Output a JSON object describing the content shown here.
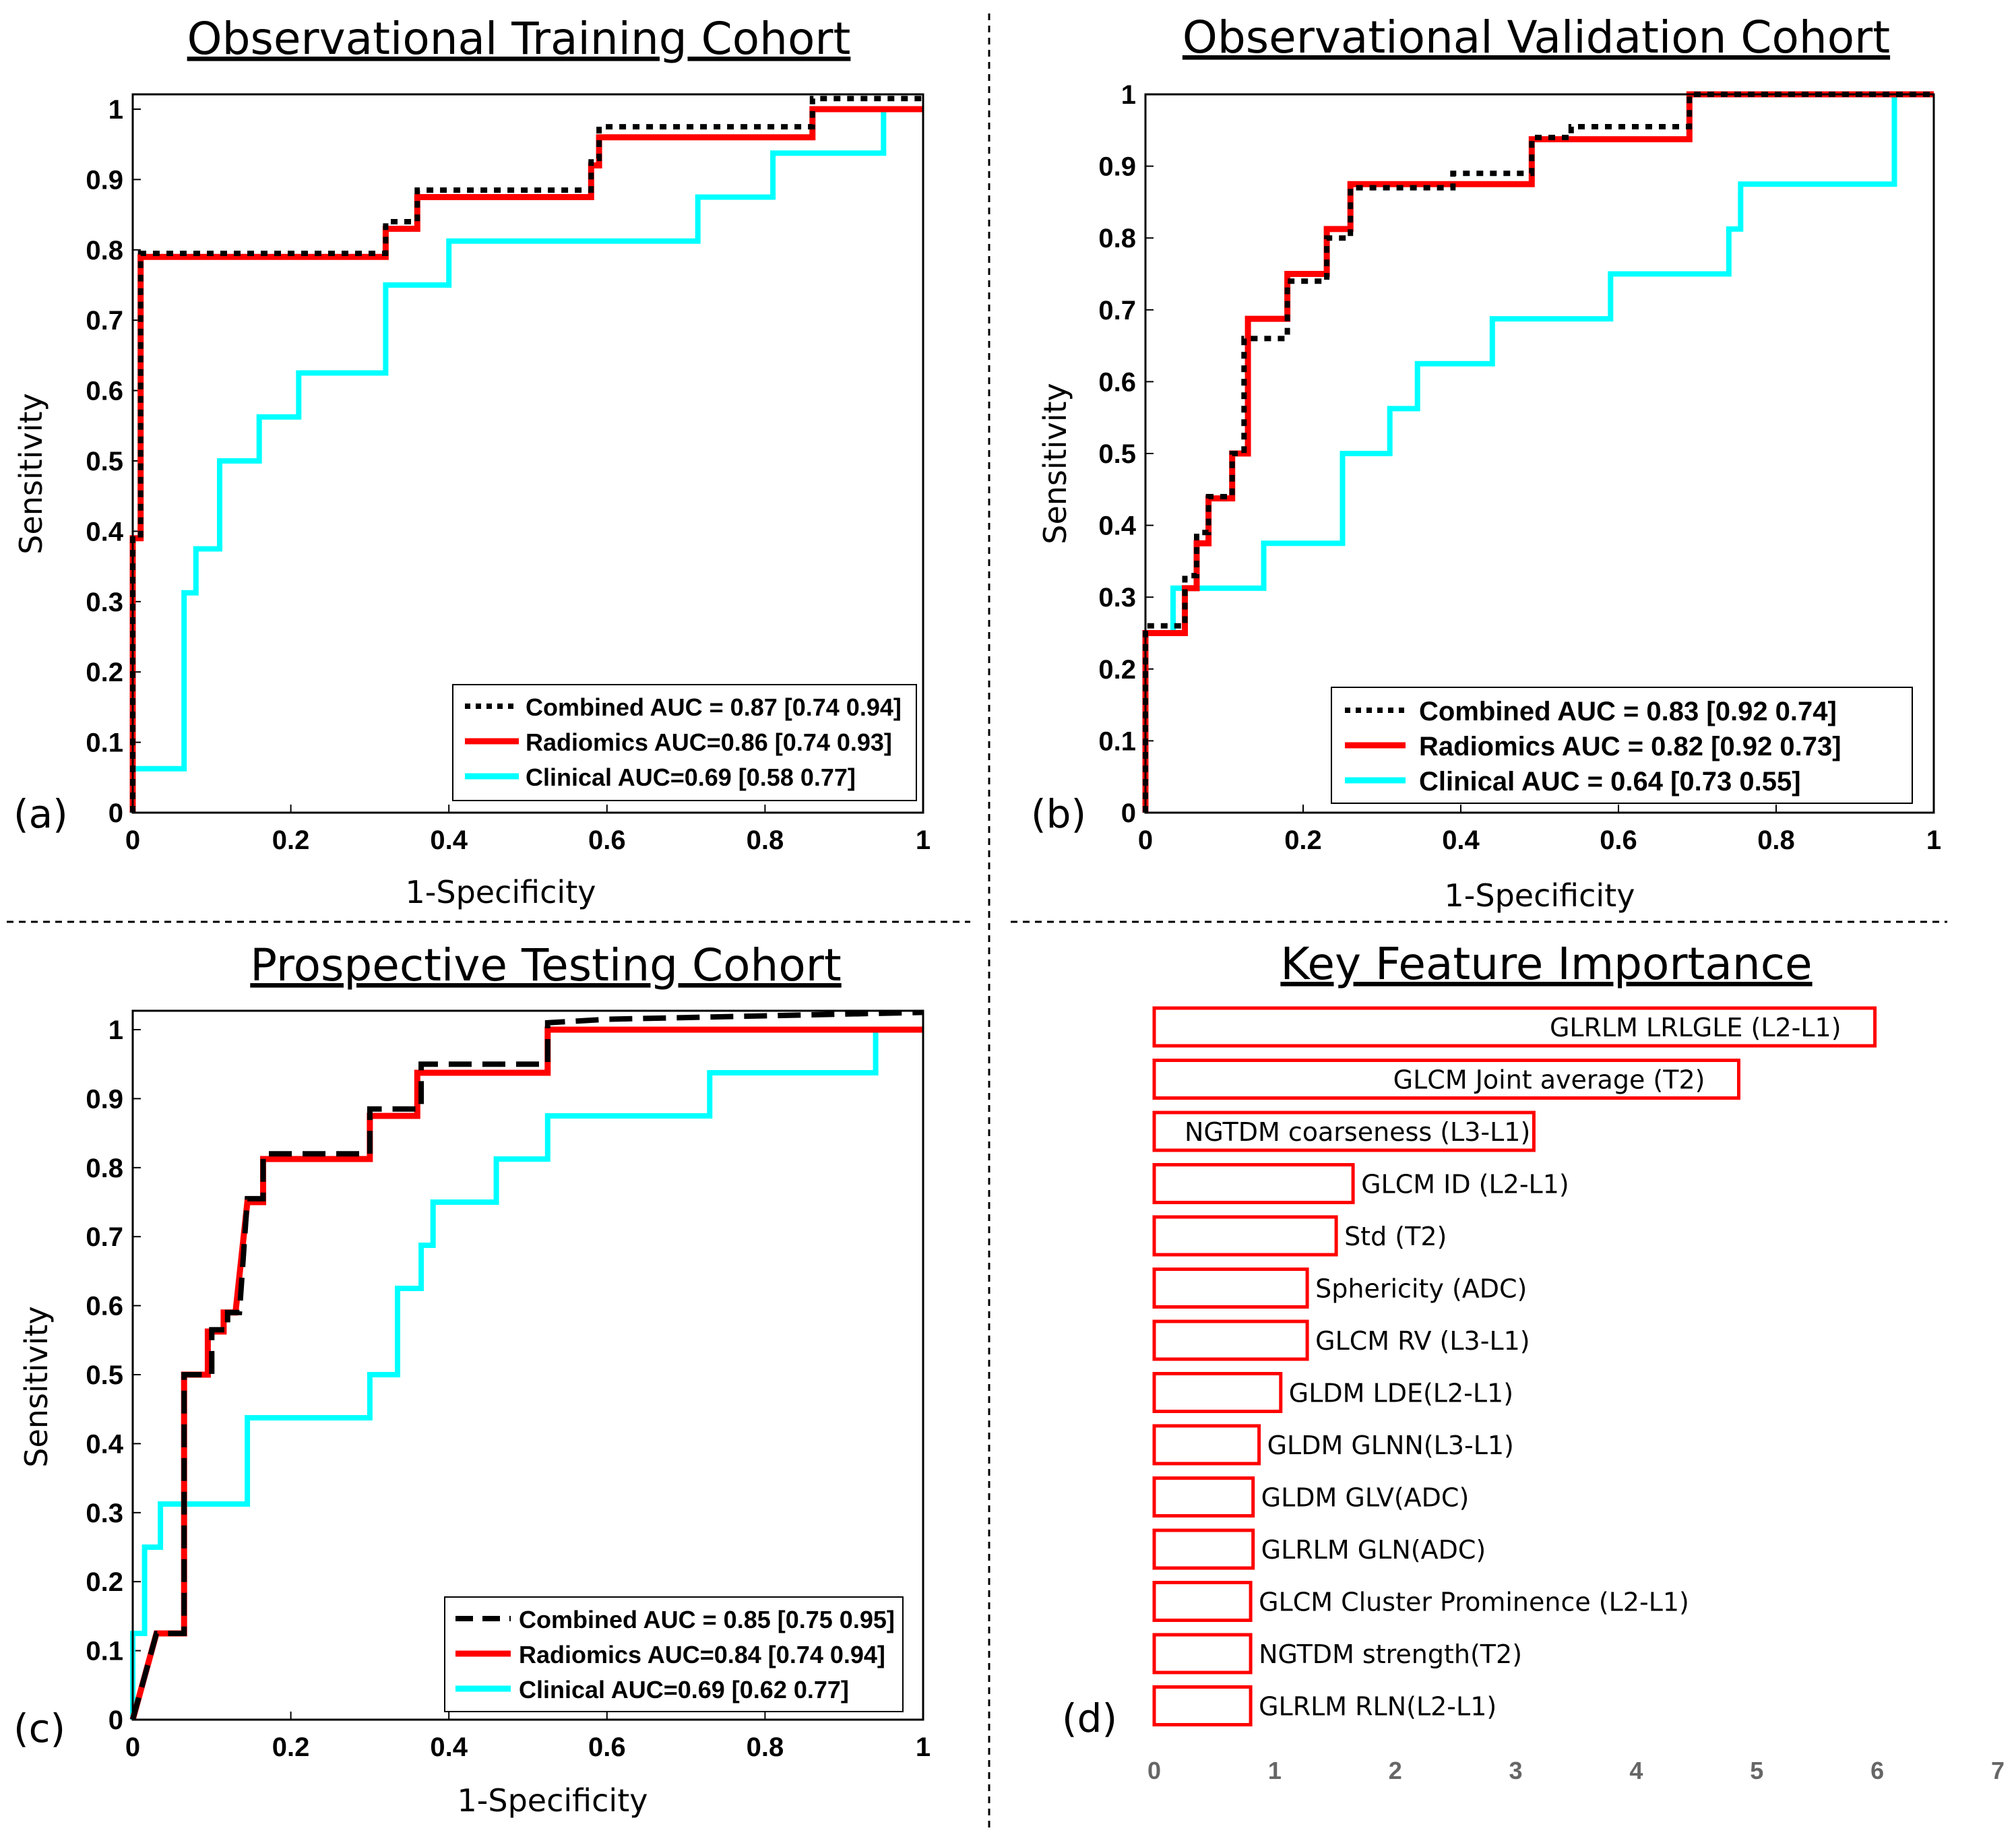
{
  "figure": {
    "dividers": true
  },
  "chart_data": [
    {
      "type": "line",
      "id": "a",
      "panel_label": "(a)",
      "title": "Observational Training Cohort",
      "xlabel": "1-Specificity",
      "ylabel": "Sensitivity",
      "xlim": [
        0,
        1
      ],
      "ylim": [
        0,
        1
      ],
      "xticks": [
        "0",
        "0.2",
        "0.4",
        "0.6",
        "0.8",
        "1"
      ],
      "yticks": [
        "0",
        "0.1",
        "0.2",
        "0.3",
        "0.4",
        "0.5",
        "0.6",
        "0.7",
        "0.8",
        "0.9",
        "1"
      ],
      "legend_position": "bottom-right",
      "series": [
        {
          "name": "Combined AUC = 0.87 [0.74 0.94]",
          "style": "dotted",
          "color": "#000000",
          "points": [
            [
              0,
              0
            ],
            [
              0,
              0.395
            ],
            [
              0.01,
              0.395
            ],
            [
              0.01,
              0.795
            ],
            [
              0.32,
              0.795
            ],
            [
              0.32,
              0.84
            ],
            [
              0.36,
              0.84
            ],
            [
              0.36,
              0.885
            ],
            [
              0.58,
              0.885
            ],
            [
              0.58,
              0.93
            ],
            [
              0.59,
              0.93
            ],
            [
              0.59,
              0.975
            ],
            [
              0.86,
              0.975
            ],
            [
              0.86,
              1.015
            ],
            [
              1,
              1.015
            ]
          ]
        },
        {
          "name": "Radiomics AUC=0.86 [0.74 0.93]",
          "style": "solid",
          "color": "#ff0000",
          "points": [
            [
              0,
              0
            ],
            [
              0,
              0.39
            ],
            [
              0.01,
              0.39
            ],
            [
              0.01,
              0.79
            ],
            [
              0.32,
              0.79
            ],
            [
              0.32,
              0.83
            ],
            [
              0.36,
              0.83
            ],
            [
              0.36,
              0.875
            ],
            [
              0.58,
              0.875
            ],
            [
              0.58,
              0.92
            ],
            [
              0.59,
              0.92
            ],
            [
              0.59,
              0.96
            ],
            [
              0.86,
              0.96
            ],
            [
              0.86,
              1
            ],
            [
              1,
              1
            ]
          ]
        },
        {
          "name": "Clinical AUC=0.69 [0.58 0.77]",
          "style": "solid",
          "color": "#00ffff",
          "points": [
            [
              0,
              0
            ],
            [
              0,
              0.0625
            ],
            [
              0.065,
              0.0625
            ],
            [
              0.065,
              0.3125
            ],
            [
              0.08,
              0.3125
            ],
            [
              0.08,
              0.375
            ],
            [
              0.11,
              0.375
            ],
            [
              0.11,
              0.5
            ],
            [
              0.16,
              0.5
            ],
            [
              0.16,
              0.5625
            ],
            [
              0.21,
              0.5625
            ],
            [
              0.21,
              0.625
            ],
            [
              0.32,
              0.625
            ],
            [
              0.32,
              0.75
            ],
            [
              0.4,
              0.75
            ],
            [
              0.4,
              0.8125
            ],
            [
              0.715,
              0.8125
            ],
            [
              0.715,
              0.875
            ],
            [
              0.81,
              0.875
            ],
            [
              0.81,
              0.9375
            ],
            [
              0.95,
              0.9375
            ],
            [
              0.95,
              1
            ],
            [
              1,
              1
            ]
          ]
        }
      ]
    },
    {
      "type": "line",
      "id": "b",
      "panel_label": "(b)",
      "title": "Observational Validation Cohort",
      "xlabel": "1-Specificity",
      "ylabel": "Sensitivity",
      "xlim": [
        0,
        1
      ],
      "ylim": [
        0,
        1
      ],
      "xticks": [
        "0",
        "0.2",
        "0.4",
        "0.6",
        "0.8",
        "1"
      ],
      "yticks": [
        "0",
        "0.1",
        "0.2",
        "0.3",
        "0.4",
        "0.5",
        "0.6",
        "0.7",
        "0.8",
        "0.9",
        "1"
      ],
      "legend_position": "bottom-right",
      "series": [
        {
          "name": "Combined AUC = 0.83 [0.92 0.74]",
          "style": "dotted",
          "color": "#000000",
          "points": [
            [
              0,
              0
            ],
            [
              0,
              0.26
            ],
            [
              0.05,
              0.26
            ],
            [
              0.05,
              0.33
            ],
            [
              0.065,
              0.33
            ],
            [
              0.065,
              0.39
            ],
            [
              0.08,
              0.39
            ],
            [
              0.08,
              0.44
            ],
            [
              0.11,
              0.44
            ],
            [
              0.11,
              0.5
            ],
            [
              0.125,
              0.5
            ],
            [
              0.125,
              0.66
            ],
            [
              0.18,
              0.66
            ],
            [
              0.18,
              0.74
            ],
            [
              0.23,
              0.74
            ],
            [
              0.23,
              0.8
            ],
            [
              0.26,
              0.8
            ],
            [
              0.26,
              0.87
            ],
            [
              0.39,
              0.87
            ],
            [
              0.39,
              0.89
            ],
            [
              0.49,
              0.89
            ],
            [
              0.49,
              0.94
            ],
            [
              0.54,
              0.94
            ],
            [
              0.54,
              0.955
            ],
            [
              0.69,
              0.955
            ],
            [
              0.69,
              1
            ],
            [
              0.95,
              1
            ],
            [
              1,
              1
            ]
          ]
        },
        {
          "name": "Radiomics AUC = 0.82 [0.92 0.73]",
          "style": "solid",
          "color": "#ff0000",
          "points": [
            [
              0,
              0
            ],
            [
              0,
              0.25
            ],
            [
              0.05,
              0.25
            ],
            [
              0.05,
              0.3125
            ],
            [
              0.065,
              0.3125
            ],
            [
              0.065,
              0.375
            ],
            [
              0.08,
              0.375
            ],
            [
              0.08,
              0.4375
            ],
            [
              0.11,
              0.4375
            ],
            [
              0.11,
              0.5
            ],
            [
              0.13,
              0.5
            ],
            [
              0.13,
              0.6875
            ],
            [
              0.18,
              0.6875
            ],
            [
              0.18,
              0.75
            ],
            [
              0.23,
              0.75
            ],
            [
              0.23,
              0.8125
            ],
            [
              0.26,
              0.8125
            ],
            [
              0.26,
              0.875
            ],
            [
              0.49,
              0.875
            ],
            [
              0.49,
              0.9375
            ],
            [
              0.69,
              0.9375
            ],
            [
              0.69,
              1
            ],
            [
              1,
              1
            ]
          ]
        },
        {
          "name": "Clinical AUC = 0.64 [0.73 0.55]",
          "style": "solid",
          "color": "#00ffff",
          "points": [
            [
              0,
              0
            ],
            [
              0,
              0.25
            ],
            [
              0.035,
              0.25
            ],
            [
              0.035,
              0.3125
            ],
            [
              0.15,
              0.3125
            ],
            [
              0.15,
              0.375
            ],
            [
              0.25,
              0.375
            ],
            [
              0.25,
              0.5
            ],
            [
              0.31,
              0.5
            ],
            [
              0.31,
              0.5625
            ],
            [
              0.345,
              0.5625
            ],
            [
              0.345,
              0.625
            ],
            [
              0.44,
              0.625
            ],
            [
              0.44,
              0.6875
            ],
            [
              0.59,
              0.6875
            ],
            [
              0.59,
              0.75
            ],
            [
              0.74,
              0.75
            ],
            [
              0.74,
              0.8125
            ],
            [
              0.755,
              0.8125
            ],
            [
              0.755,
              0.875
            ],
            [
              0.95,
              0.875
            ],
            [
              0.95,
              1
            ],
            [
              1,
              1
            ]
          ]
        }
      ]
    },
    {
      "type": "line",
      "id": "c",
      "panel_label": "(c)",
      "title": "Prospective Testing Cohort",
      "xlabel": "1-Specificity",
      "ylabel": "Sensitivity",
      "xlim": [
        0,
        1
      ],
      "ylim": [
        0,
        1
      ],
      "xticks": [
        "0",
        "0.2",
        "0.4",
        "0.6",
        "0.8",
        "1"
      ],
      "yticks": [
        "0",
        "0.1",
        "0.2",
        "0.3",
        "0.4",
        "0.5",
        "0.6",
        "0.7",
        "0.8",
        "0.9",
        "1"
      ],
      "legend_position": "bottom-right",
      "series": [
        {
          "name": "Combined AUC = 0.85 [0.75 0.95]",
          "style": "dashed",
          "color": "#000000",
          "points": [
            [
              0,
              0
            ],
            [
              0.03,
              0.125
            ],
            [
              0.065,
              0.125
            ],
            [
              0.065,
              0.5
            ],
            [
              0.1,
              0.5
            ],
            [
              0.1,
              0.565
            ],
            [
              0.12,
              0.565
            ],
            [
              0.12,
              0.59
            ],
            [
              0.135,
              0.59
            ],
            [
              0.145,
              0.755
            ],
            [
              0.165,
              0.755
            ],
            [
              0.165,
              0.82
            ],
            [
              0.3,
              0.82
            ],
            [
              0.3,
              0.885
            ],
            [
              0.365,
              0.885
            ],
            [
              0.365,
              0.95
            ],
            [
              0.525,
              0.95
            ],
            [
              0.525,
              1.01
            ],
            [
              0.6,
              1.015
            ],
            [
              0.8,
              1.02
            ],
            [
              1,
              1.025
            ]
          ]
        },
        {
          "name": "Radiomics AUC=0.84 [0.74 0.94]",
          "style": "solid",
          "color": "#ff0000",
          "points": [
            [
              0,
              0
            ],
            [
              0.03,
              0.125
            ],
            [
              0.065,
              0.125
            ],
            [
              0.065,
              0.5
            ],
            [
              0.095,
              0.5
            ],
            [
              0.095,
              0.5625
            ],
            [
              0.115,
              0.5625
            ],
            [
              0.115,
              0.59
            ],
            [
              0.13,
              0.59
            ],
            [
              0.145,
              0.75
            ],
            [
              0.165,
              0.75
            ],
            [
              0.165,
              0.8125
            ],
            [
              0.3,
              0.8125
            ],
            [
              0.3,
              0.875
            ],
            [
              0.36,
              0.875
            ],
            [
              0.36,
              0.9375
            ],
            [
              0.525,
              0.9375
            ],
            [
              0.525,
              1
            ],
            [
              1,
              1
            ]
          ]
        },
        {
          "name": "Clinical AUC=0.69 [0.62 0.77]",
          "style": "solid",
          "color": "#00ffff",
          "points": [
            [
              0,
              0
            ],
            [
              0,
              0.125
            ],
            [
              0.015,
              0.125
            ],
            [
              0.015,
              0.25
            ],
            [
              0.035,
              0.25
            ],
            [
              0.035,
              0.3125
            ],
            [
              0.145,
              0.3125
            ],
            [
              0.145,
              0.4375
            ],
            [
              0.3,
              0.4375
            ],
            [
              0.3,
              0.5
            ],
            [
              0.335,
              0.5
            ],
            [
              0.335,
              0.625
            ],
            [
              0.365,
              0.625
            ],
            [
              0.365,
              0.6875
            ],
            [
              0.38,
              0.6875
            ],
            [
              0.38,
              0.75
            ],
            [
              0.46,
              0.75
            ],
            [
              0.46,
              0.8125
            ],
            [
              0.525,
              0.8125
            ],
            [
              0.525,
              0.875
            ],
            [
              0.73,
              0.875
            ],
            [
              0.73,
              0.9375
            ],
            [
              0.94,
              0.9375
            ],
            [
              0.94,
              1
            ],
            [
              1,
              1
            ]
          ]
        }
      ]
    },
    {
      "type": "bar",
      "id": "d",
      "orientation": "horizontal",
      "panel_label": "(d)",
      "title": "Key Feature Importance",
      "xlim": [
        0,
        7
      ],
      "xticks": [
        "0",
        "1",
        "2",
        "3",
        "4",
        "5",
        "6",
        "7"
      ],
      "bar_edge_color": "#ff0000",
      "categories": [
        "GLRLM LRLGLE (L2-L1)",
        "GLCM Joint average (T2)",
        "NGTDM coarseness (L3-L1)",
        "GLCM ID (L2-L1)",
        "Std (T2)",
        "Sphericity (ADC)",
        "GLCM  RV (L3-L1)",
        "GLDM LDE(L2-L1)",
        "GLDM GLNN(L3-L1)",
        "GLDM GLV(ADC)",
        "GLRLM GLN(ADC)",
        "GLCM Cluster Prominence (L2-L1)",
        "NGTDM strength(T2)",
        "GLRLM RLN(L2-L1)"
      ],
      "values": [
        5.98,
        4.85,
        3.15,
        1.65,
        1.51,
        1.27,
        1.27,
        1.05,
        0.87,
        0.82,
        0.82,
        0.8,
        0.8,
        0.8
      ]
    }
  ]
}
